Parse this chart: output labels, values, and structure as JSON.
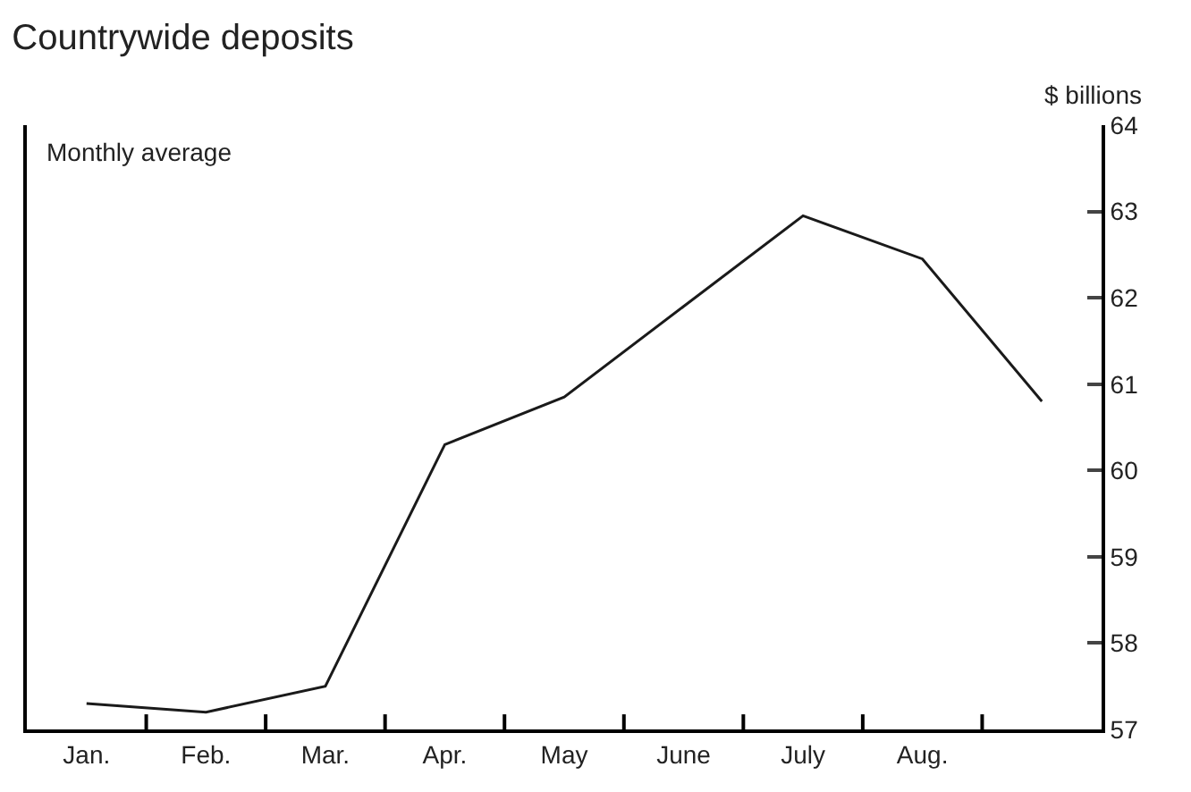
{
  "chart_data": {
    "type": "line",
    "title": "Countrywide deposits",
    "ylabel": "$ billions",
    "annotations": [
      "Monthly average"
    ],
    "categories": [
      "Jan.",
      "Feb.",
      "Mar.",
      "Apr.",
      "May",
      "June",
      "July",
      "Aug.",
      null
    ],
    "series": [
      {
        "color": "#1a1a1a",
        "values": [
          57.3,
          57.2,
          57.5,
          60.3,
          60.85,
          61.9,
          62.95,
          62.45,
          60.8
        ]
      }
    ],
    "ylim": [
      57,
      64
    ],
    "yticks": [
      57,
      58,
      59,
      60,
      61,
      62,
      63,
      64
    ],
    "marker": "none",
    "line_style": "solid"
  }
}
